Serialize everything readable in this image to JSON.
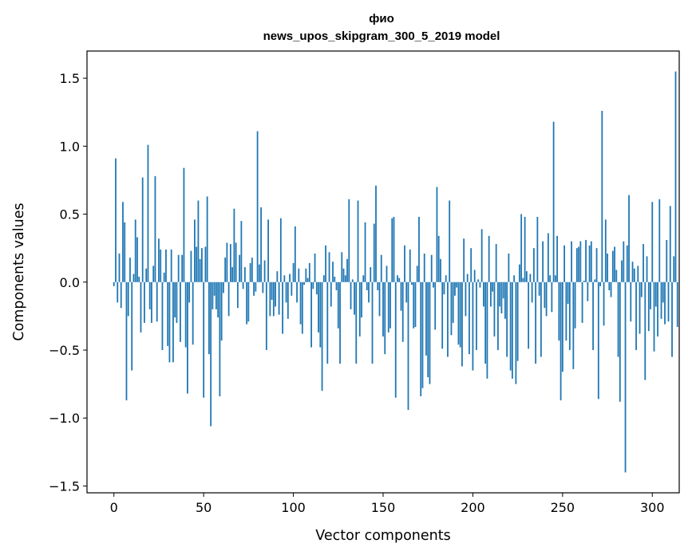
{
  "chart_data": {
    "type": "bar",
    "title": "фио",
    "subtitle": "news_upos_skipgram_300_5_2019 model",
    "xlabel": "Vector components",
    "ylabel": "Components values",
    "xlim": [
      -15,
      315
    ],
    "ylim": [
      -1.55,
      1.7
    ],
    "xticks": [
      0,
      50,
      100,
      150,
      200,
      250,
      300
    ],
    "yticks": [
      -1.5,
      -1.0,
      -0.5,
      0.0,
      0.5,
      1.0,
      1.5
    ],
    "xtick_labels": [
      "0",
      "50",
      "100",
      "150",
      "200",
      "250",
      "300"
    ],
    "ytick_labels": [
      "−1.5",
      "−1.0",
      "−0.5",
      "0.0",
      "0.5",
      "1.0",
      "1.5"
    ],
    "bar_color": "#1f77b4",
    "values": [
      -0.03,
      0.91,
      -0.15,
      0.21,
      -0.19,
      0.59,
      0.44,
      -0.87,
      -0.25,
      0.18,
      -0.65,
      0.06,
      0.46,
      0.33,
      0.04,
      -0.37,
      0.77,
      -0.3,
      0.1,
      1.01,
      -0.2,
      -0.3,
      0.12,
      0.78,
      -0.29,
      0.32,
      0.24,
      -0.5,
      0.07,
      0.24,
      -0.47,
      -0.59,
      0.24,
      -0.59,
      -0.26,
      -0.3,
      0.2,
      -0.44,
      0.2,
      0.84,
      -0.48,
      -0.82,
      -0.15,
      0.23,
      -0.46,
      0.46,
      0.26,
      0.6,
      0.17,
      0.25,
      -0.85,
      0.26,
      0.63,
      -0.53,
      -1.06,
      -0.2,
      -0.1,
      -0.2,
      -0.26,
      -0.84,
      -0.43,
      -0.08,
      0.18,
      0.29,
      -0.25,
      0.28,
      0.11,
      0.54,
      0.29,
      -0.19,
      0.2,
      0.45,
      -0.05,
      0.11,
      -0.31,
      -0.29,
      0.14,
      0.18,
      -0.1,
      -0.07,
      1.11,
      0.13,
      0.55,
      -0.08,
      0.16,
      -0.5,
      0.46,
      -0.25,
      -0.13,
      -0.25,
      -0.18,
      0.08,
      -0.24,
      0.47,
      -0.38,
      0.05,
      -0.15,
      -0.27,
      0.06,
      -0.1,
      0.14,
      0.41,
      -0.15,
      0.1,
      -0.31,
      -0.38,
      -0.02,
      0.1,
      0.03,
      0.14,
      -0.48,
      -0.05,
      0.21,
      -0.09,
      -0.37,
      -0.48,
      -0.8,
      0.05,
      0.27,
      -0.6,
      0.22,
      -0.18,
      0.15,
      0.04,
      -0.06,
      -0.34,
      -0.6,
      0.22,
      0.1,
      0.05,
      0.17,
      0.61,
      -0.2,
      0.02,
      -0.24,
      -0.6,
      0.6,
      -0.4,
      -0.26,
      0.05,
      0.44,
      -0.06,
      -0.15,
      0.11,
      -0.6,
      0.43,
      0.71,
      -0.06,
      -0.25,
      0.2,
      -0.4,
      -0.53,
      0.12,
      -0.37,
      -0.34,
      0.47,
      0.48,
      -0.85,
      0.05,
      0.03,
      -0.21,
      -0.44,
      0.27,
      -0.15,
      -0.94,
      0.24,
      -0.02,
      -0.34,
      -0.33,
      0.12,
      0.48,
      -0.84,
      -0.78,
      0.21,
      -0.54,
      -0.7,
      -0.75,
      0.2,
      -0.04,
      -0.35,
      0.7,
      0.34,
      0.17,
      -0.49,
      -0.09,
      0.05,
      -0.55,
      0.6,
      -0.39,
      -0.3,
      -0.1,
      -0.04,
      -0.46,
      -0.48,
      -0.62,
      0.32,
      -0.25,
      0.06,
      -0.53,
      0.25,
      -0.65,
      0.09,
      -0.5,
      0.02,
      -0.04,
      0.39,
      -0.18,
      -0.6,
      -0.71,
      0.34,
      -0.18,
      -0.07,
      -0.4,
      0.28,
      -0.5,
      -0.18,
      -0.23,
      -0.12,
      -0.27,
      -0.55,
      0.21,
      -0.65,
      -0.71,
      0.05,
      -0.75,
      -0.58,
      0.13,
      0.5,
      0.03,
      0.48,
      0.08,
      -0.49,
      0.06,
      -0.15,
      0.25,
      -0.6,
      0.48,
      -0.1,
      -0.55,
      0.3,
      -0.19,
      -0.25,
      0.36,
      0.05,
      -0.22,
      1.18,
      0.05,
      0.34,
      -0.43,
      -0.87,
      -0.66,
      0.27,
      -0.43,
      -0.16,
      -0.5,
      0.3,
      -0.64,
      -0.34,
      0.25,
      0.26,
      0.3,
      -0.3,
      0.01,
      0.31,
      -0.14,
      0.27,
      0.3,
      -0.5,
      0.02,
      0.25,
      -0.86,
      -0.03,
      1.26,
      -0.32,
      0.46,
      0.21,
      -0.06,
      -0.11,
      0.23,
      0.26,
      0.09,
      -0.55,
      -0.88,
      0.16,
      0.3,
      -1.4,
      0.27,
      0.64,
      -0.29,
      0.15,
      0.1,
      -0.5,
      0.12,
      -0.38,
      -0.11,
      0.28,
      -0.72,
      0.19,
      -0.36,
      -0.2,
      0.59,
      -0.51,
      -0.18,
      -0.4,
      0.61,
      -0.27,
      -0.15,
      -0.31,
      0.31,
      -0.29,
      0.56,
      -0.55,
      0.19,
      1.55,
      -0.33
    ]
  }
}
